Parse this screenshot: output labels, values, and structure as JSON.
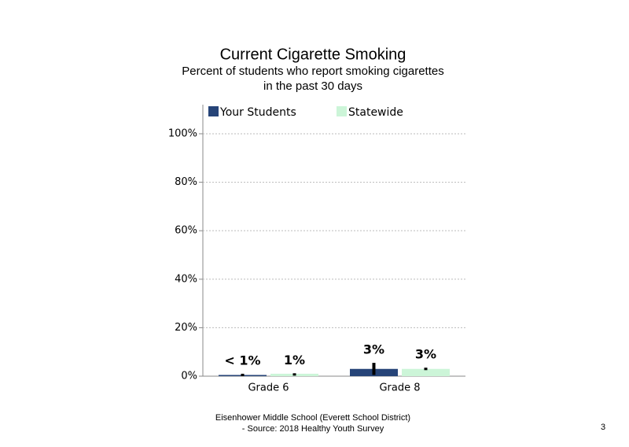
{
  "chart_data": {
    "type": "bar",
    "title": "Current Cigarette Smoking",
    "subtitle": [
      "Percent of students who report smoking cigarettes",
      "in the past 30 days"
    ],
    "categories": [
      "Grade 6",
      "Grade 8"
    ],
    "series": [
      {
        "name": "Your Students",
        "color": "#264478",
        "values": [
          0.5,
          3
        ],
        "errors": [
          0.5,
          2.5
        ],
        "value_labels": [
          "< 1%",
          "3%"
        ]
      },
      {
        "name": "Statewide",
        "color": "#ccf5d8",
        "values": [
          1,
          3
        ],
        "errors": [
          0.2,
          0.5
        ],
        "value_labels": [
          "1%",
          "3%"
        ]
      }
    ],
    "ylim": [
      0,
      112
    ],
    "yticks": [
      {
        "value": 0,
        "label": "0%"
      },
      {
        "value": 20,
        "label": "20%"
      },
      {
        "value": 40,
        "label": "40%"
      },
      {
        "value": 60,
        "label": "60%"
      },
      {
        "value": 80,
        "label": "80%"
      },
      {
        "value": 100,
        "label": "100%"
      }
    ],
    "grid": true,
    "footer": [
      "Eisenhower Middle School (Everett School District)",
      "- Source: 2018 Healthy Youth Survey"
    ],
    "page_number": "3"
  }
}
